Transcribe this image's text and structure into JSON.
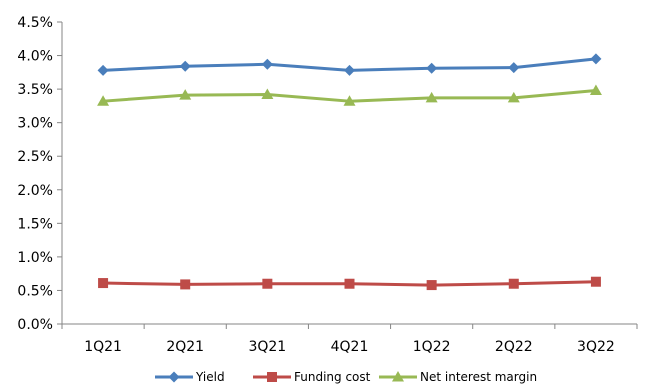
{
  "chart_data": {
    "type": "line",
    "title": "",
    "xlabel": "",
    "ylabel": "",
    "categories": [
      "1Q21",
      "2Q21",
      "3Q21",
      "4Q21",
      "1Q22",
      "2Q22",
      "3Q22"
    ],
    "ylim": [
      0,
      4.5
    ],
    "yticks": [
      "0.0%",
      "0.5%",
      "1.0%",
      "1.5%",
      "2.0%",
      "2.5%",
      "3.0%",
      "3.5%",
      "4.0%",
      "4.5%"
    ],
    "ytick_step": 0.5,
    "grid": false,
    "legend_position": "bottom",
    "series": [
      {
        "name": "Yield",
        "values": [
          3.78,
          3.84,
          3.87,
          3.78,
          3.81,
          3.82,
          3.95
        ],
        "color": "#4a7ebb",
        "marker": "diamond"
      },
      {
        "name": "Funding cost",
        "values": [
          0.61,
          0.59,
          0.6,
          0.6,
          0.58,
          0.6,
          0.63
        ],
        "color": "#be4b48",
        "marker": "square"
      },
      {
        "name": "Net interest margin",
        "values": [
          3.32,
          3.41,
          3.42,
          3.32,
          3.37,
          3.37,
          3.48
        ],
        "color": "#98b954",
        "marker": "triangle"
      }
    ]
  }
}
